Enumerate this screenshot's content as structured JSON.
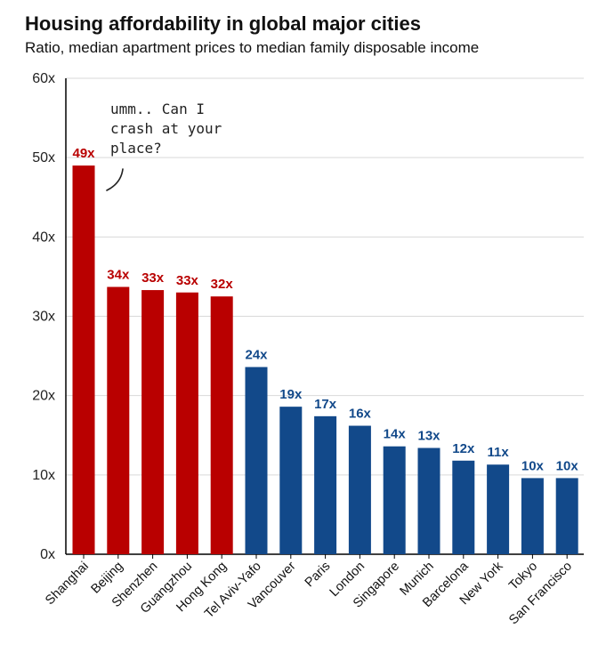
{
  "title": "Housing affordability in global major cities",
  "subtitle": "Ratio, median apartment prices to median family disposable income",
  "annotation": [
    "umm.. Can I",
    "crash at your",
    "place?"
  ],
  "colors": {
    "china": "#b90000",
    "other": "#12498a",
    "grid": "#d9d9d9",
    "axis": "#000000"
  },
  "chart_data": {
    "type": "bar",
    "title": "Housing affordability in global major cities",
    "subtitle": "Ratio, median apartment prices to median family disposable income",
    "xlabel": "",
    "ylabel": "",
    "ylim": [
      0,
      60
    ],
    "yticks": [
      0,
      10,
      20,
      30,
      40,
      50,
      60
    ],
    "ytick_labels": [
      "0x",
      "10x",
      "20x",
      "30x",
      "40x",
      "50x",
      "60x"
    ],
    "grid": true,
    "categories": [
      "Shanghai",
      "Beijing",
      "Shenzhen",
      "Guangzhou",
      "Hong Kong",
      "Tel Aviv-Yafo",
      "Vancouver",
      "Paris",
      "London",
      "Singapore",
      "Munich",
      "Barcelona",
      "New York",
      "Tokyo",
      "San Francisco"
    ],
    "values": [
      49,
      33.7,
      33.3,
      33,
      32.5,
      23.6,
      18.6,
      17.4,
      16.2,
      13.6,
      13.4,
      11.8,
      11.3,
      9.6,
      9.6
    ],
    "data_labels": [
      "49x",
      "34x",
      "33x",
      "33x",
      "32x",
      "24x",
      "19x",
      "17x",
      "16x",
      "14x",
      "13x",
      "12x",
      "11x",
      "10x",
      "10x"
    ],
    "highlight_group": [
      true,
      true,
      true,
      true,
      true,
      false,
      false,
      false,
      false,
      false,
      false,
      false,
      false,
      false,
      false
    ]
  }
}
